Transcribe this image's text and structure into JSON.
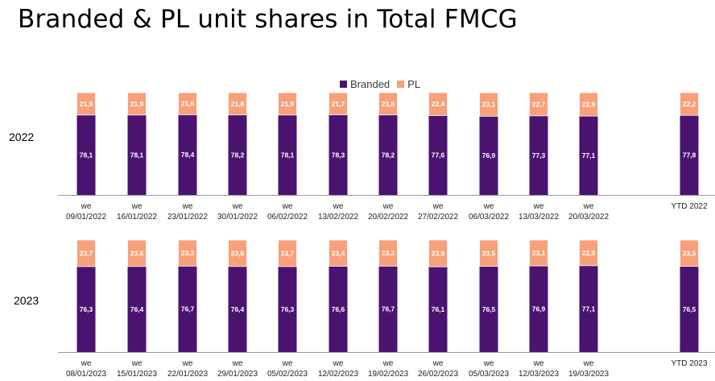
{
  "title": "Branded & PL unit shares in Total FMCG",
  "legend": {
    "branded": "Branded",
    "pl": "PL"
  },
  "colors": {
    "branded": "#4a1370",
    "pl": "#f7a07a",
    "axis": "#999999"
  },
  "chart_data": [
    {
      "type": "bar",
      "stacked": true,
      "row_label": "2022",
      "categories": [
        [
          "we",
          "09/01/2022"
        ],
        [
          "we",
          "16/01/2022"
        ],
        [
          "we",
          "23/01/2022"
        ],
        [
          "we",
          "30/01/2022"
        ],
        [
          "we",
          "06/02/2022"
        ],
        [
          "we",
          "13/02/2022"
        ],
        [
          "we",
          "20/02/2022"
        ],
        [
          "we",
          "27/02/2022"
        ],
        [
          "we",
          "06/03/2022"
        ],
        [
          "we",
          "13/03/2022"
        ],
        [
          "we",
          "20/03/2022"
        ],
        [
          "",
          "YTD 2022"
        ]
      ],
      "series": [
        {
          "name": "Branded",
          "values": [
            78.1,
            78.1,
            78.4,
            78.2,
            78.1,
            78.3,
            78.2,
            77.6,
            76.9,
            77.3,
            77.1,
            77.8
          ],
          "labels": [
            "78,1",
            "78,1",
            "78,4",
            "78,2",
            "78,1",
            "78,3",
            "78,2",
            "77,6",
            "76,9",
            "77,3",
            "77,1",
            "77,8"
          ]
        },
        {
          "name": "PL",
          "values": [
            21.9,
            21.9,
            21.6,
            21.8,
            21.9,
            21.7,
            21.8,
            22.4,
            23.1,
            22.7,
            22.9,
            22.2
          ],
          "labels": [
            "21,9",
            "21,9",
            "21,6",
            "21,8",
            "21,9",
            "21,7",
            "21,8",
            "22,4",
            "23,1",
            "22,7",
            "22,9",
            "22,2"
          ]
        }
      ],
      "ylim": [
        0,
        100
      ]
    },
    {
      "type": "bar",
      "stacked": true,
      "row_label": "2023",
      "categories": [
        [
          "we",
          "08/01/2023"
        ],
        [
          "we",
          "15/01/2023"
        ],
        [
          "we",
          "22/01/2023"
        ],
        [
          "we",
          "29/01/2023"
        ],
        [
          "we",
          "05/02/2023"
        ],
        [
          "we",
          "12/02/2023"
        ],
        [
          "we",
          "19/02/2023"
        ],
        [
          "we",
          "26/02/2023"
        ],
        [
          "we",
          "05/03/2023"
        ],
        [
          "we",
          "12/03/2023"
        ],
        [
          "we",
          "19/03/2023"
        ],
        [
          "",
          "YTD 2023"
        ]
      ],
      "series": [
        {
          "name": "Branded",
          "values": [
            76.3,
            76.4,
            76.7,
            76.4,
            76.3,
            76.6,
            76.7,
            76.1,
            76.5,
            76.9,
            77.1,
            76.5
          ],
          "labels": [
            "76,3",
            "76,4",
            "76,7",
            "76,4",
            "76,3",
            "76,6",
            "76,7",
            "76,1",
            "76,5",
            "76,9",
            "77,1",
            "76,5"
          ]
        },
        {
          "name": "PL",
          "values": [
            23.7,
            23.6,
            23.3,
            23.6,
            23.7,
            23.4,
            23.3,
            23.9,
            23.5,
            23.1,
            22.9,
            23.5
          ],
          "labels": [
            "23,7",
            "23,6",
            "23,3",
            "23,6",
            "23,7",
            "23,4",
            "23,3",
            "23,9",
            "23,5",
            "23,1",
            "22,9",
            "23,5"
          ]
        }
      ],
      "ylim": [
        0,
        100
      ]
    }
  ]
}
